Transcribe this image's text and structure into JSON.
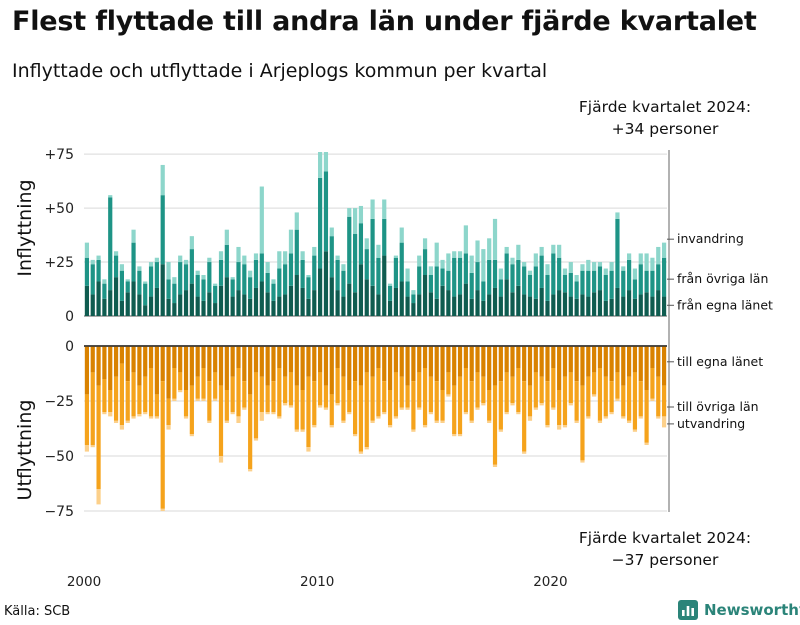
{
  "title": "Flest flyttade till andra län under fjärde kvartalet",
  "subtitle": "Inflyttade och utflyttade i Arjeplogs kommun per kvartal",
  "source": "Källa: SCB",
  "brand": "Newsworthy",
  "brand_icon": "bar-chart-logo-icon",
  "annotation_top": {
    "line1": "Fjärde kvartalet 2024:",
    "line2": "+34 personer"
  },
  "annotation_bottom": {
    "line1": "Fjärde kvartalet 2024:",
    "line2": "−37 personer"
  },
  "colors": {
    "in_egna": "#0f5c50",
    "in_ovriga": "#1e9486",
    "in_invandring": "#8dd6cb",
    "out_egna": "#d98200",
    "out_ovriga": "#f5a31c",
    "out_utvandring": "#fcd08a",
    "grid": "#d9d9d9"
  },
  "chart_data": {
    "type": "bar",
    "stacked": true,
    "frequency": "quarterly",
    "start": "2000 Q1",
    "end": "2024 Q4",
    "x_ticks": [
      2000,
      2010,
      2020
    ],
    "panels": [
      {
        "name": "Inflyttning",
        "ylabel": "Inflyttning",
        "ylim": [
          0,
          76
        ],
        "y_ticks": [
          0,
          25,
          50,
          75
        ],
        "y_tick_labels": [
          "0",
          "+25",
          "+50",
          "+75"
        ],
        "series": [
          {
            "name": "från egna länet",
            "values": [
              14,
              10,
              16,
              8,
              12,
              18,
              7,
              11,
              16,
              10,
              5,
              9,
              13,
              24,
              8,
              6,
              10,
              12,
              15,
              9,
              7,
              11,
              6,
              14,
              18,
              9,
              12,
              10,
              8,
              13,
              16,
              11,
              7,
              9,
              10,
              14,
              19,
              13,
              8,
              12,
              22,
              30,
              18,
              12,
              9,
              15,
              11,
              24,
              17,
              14,
              10,
              28,
              7,
              13,
              16,
              9,
              6,
              10,
              19,
              11,
              8,
              14,
              12,
              9,
              10,
              15,
              8,
              12,
              7,
              10,
              13,
              9,
              17,
              11,
              14,
              10,
              9,
              8,
              13,
              7,
              10,
              12,
              11,
              9,
              8,
              10,
              9,
              11,
              12,
              7,
              8,
              13,
              9,
              12,
              8,
              10,
              11,
              9,
              12,
              9
            ]
          },
          {
            "name": "från övriga län",
            "values": [
              13,
              14,
              10,
              7,
              43,
              10,
              14,
              5,
              18,
              11,
              10,
              14,
              12,
              32,
              9,
              9,
              15,
              12,
              16,
              10,
              10,
              14,
              8,
              12,
              15,
              8,
              13,
              14,
              10,
              13,
              13,
              9,
              8,
              13,
              14,
              15,
              21,
              13,
              10,
              16,
              42,
              37,
              19,
              14,
              12,
              31,
              27,
              19,
              14,
              31,
              17,
              17,
              7,
              14,
              18,
              7,
              4,
              13,
              12,
              8,
              15,
              8,
              9,
              18,
              17,
              14,
              12,
              13,
              9,
              16,
              13,
              8,
              12,
              13,
              12,
              13,
              10,
              15,
              15,
              12,
              19,
              15,
              8,
              11,
              8,
              11,
              12,
              10,
              11,
              12,
              13,
              32,
              12,
              14,
              9,
              14,
              10,
              12,
              12,
              18
            ]
          },
          {
            "name": "invandring",
            "values": [
              7,
              2,
              2,
              2,
              1,
              2,
              3,
              1,
              6,
              2,
              1,
              2,
              2,
              14,
              8,
              3,
              3,
              2,
              6,
              2,
              2,
              2,
              1,
              4,
              7,
              1,
              7,
              4,
              3,
              3,
              31,
              5,
              2,
              8,
              6,
              11,
              8,
              4,
              1,
              4,
              12,
              9,
              4,
              2,
              3,
              4,
              12,
              8,
              5,
              9,
              6,
              9,
              1,
              1,
              7,
              6,
              2,
              5,
              5,
              4,
              11,
              4,
              8,
              3,
              3,
              13,
              8,
              10,
              15,
              10,
              19,
              5,
              3,
              3,
              7,
              2,
              2,
              6,
              4,
              5,
              4,
              6,
              3,
              5,
              3,
              3,
              5,
              4,
              2,
              3,
              4,
              3,
              2,
              3,
              5,
              5,
              8,
              6,
              8,
              7
            ]
          }
        ]
      },
      {
        "name": "Utflyttning",
        "ylabel": "Utflyttning",
        "ylim": [
          -75,
          0
        ],
        "y_ticks": [
          0,
          -25,
          -50,
          -75
        ],
        "y_tick_labels": [
          "0",
          "−25",
          "−50",
          "−75"
        ],
        "series": [
          {
            "name": "till egna länet",
            "values": [
              -22,
              -12,
              -18,
              -15,
              -20,
              -14,
              -8,
              -16,
              -12,
              -18,
              -14,
              -10,
              -22,
              -16,
              -24,
              -10,
              -12,
              -20,
              -18,
              -14,
              -10,
              -16,
              -12,
              -18,
              -20,
              -14,
              -10,
              -16,
              -22,
              -12,
              -14,
              -18,
              -16,
              -10,
              -14,
              -12,
              -18,
              -20,
              -14,
              -16,
              -12,
              -18,
              -22,
              -10,
              -14,
              -20,
              -16,
              -18,
              -12,
              -14,
              -10,
              -16,
              -20,
              -12,
              -14,
              -18,
              -16,
              -12,
              -10,
              -14,
              -16,
              -20,
              -12,
              -18,
              -14,
              -10,
              -16,
              -12,
              -14,
              -20,
              -18,
              -16,
              -12,
              -14,
              -10,
              -16,
              -18,
              -12,
              -14,
              -16,
              -10,
              -20,
              -14,
              -12,
              -16,
              -18,
              -14,
              -12,
              -10,
              -14,
              -16,
              -12,
              -18,
              -14,
              -12,
              -16,
              -20,
              -10,
              -14,
              -18
            ]
          },
          {
            "name": "till övriga län",
            "values": [
              -23,
              -33,
              -47,
              -15,
              -10,
              -20,
              -28,
              -18,
              -20,
              -13,
              -16,
              -22,
              -10,
              -58,
              -12,
              -14,
              -8,
              -12,
              -22,
              -10,
              -14,
              -18,
              -12,
              -32,
              -14,
              -16,
              -22,
              -12,
              -34,
              -30,
              -16,
              -12,
              -14,
              -22,
              -12,
              -15,
              -20,
              -18,
              -32,
              -20,
              -15,
              -10,
              -14,
              -16,
              -20,
              -10,
              -24,
              -30,
              -34,
              -20,
              -22,
              -14,
              -16,
              -20,
              -14,
              -10,
              -22,
              -16,
              -26,
              -16,
              -18,
              -14,
              -10,
              -22,
              -26,
              -20,
              -18,
              -16,
              -12,
              -14,
              -36,
              -22,
              -18,
              -12,
              -20,
              -32,
              -14,
              -16,
              -12,
              -20,
              -18,
              -16,
              -22,
              -14,
              -18,
              -34,
              -18,
              -10,
              -24,
              -18,
              -14,
              -12,
              -14,
              -20,
              -26,
              -16,
              -24,
              -14,
              -18,
              -14
            ]
          },
          {
            "name": "utvandring",
            "values": [
              -3,
              -1,
              -7,
              -1,
              -2,
              -1,
              -2,
              -1,
              -1,
              -1,
              -1,
              -1,
              -1,
              -1,
              -2,
              -1,
              -1,
              -1,
              -1,
              -1,
              -1,
              -1,
              -1,
              -3,
              -1,
              -1,
              -3,
              -1,
              -1,
              -1,
              -4,
              -1,
              -1,
              -1,
              -1,
              -1,
              -1,
              -1,
              -2,
              -1,
              -1,
              -1,
              -1,
              -1,
              -1,
              -1,
              -1,
              -1,
              -1,
              -1,
              -1,
              -1,
              -1,
              -1,
              -1,
              -1,
              -1,
              -1,
              -1,
              -1,
              -1,
              -1,
              -1,
              -1,
              -1,
              -1,
              -1,
              -1,
              -1,
              -1,
              -1,
              -1,
              -1,
              -1,
              -1,
              -1,
              -2,
              -1,
              -1,
              -1,
              -1,
              -2,
              -1,
              -1,
              -1,
              -1,
              -1,
              -1,
              -1,
              -1,
              -1,
              -1,
              -1,
              -1,
              -1,
              -1,
              -1,
              -1,
              -1,
              -5
            ]
          }
        ]
      }
    ]
  }
}
